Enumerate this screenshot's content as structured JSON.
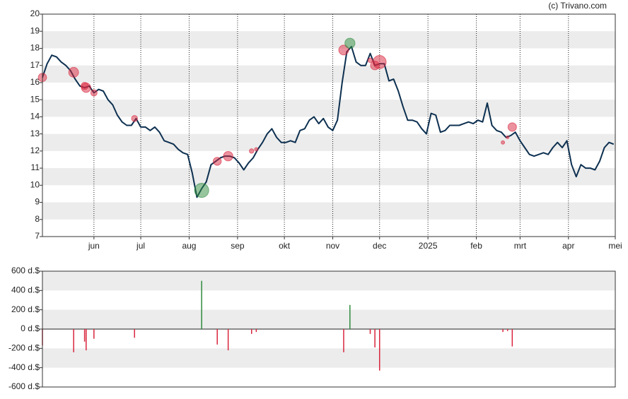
{
  "copyright": "(c) Trivano.com",
  "chart_data": [
    {
      "type": "line",
      "color": "#0d3050",
      "x": [
        0,
        3,
        6,
        9,
        12,
        15,
        18,
        21,
        24,
        27,
        30,
        33,
        36,
        39,
        42,
        45,
        48,
        51,
        54,
        57,
        60,
        63,
        66,
        69,
        72,
        75,
        78,
        81,
        84,
        87,
        90,
        93,
        96,
        99,
        102,
        105,
        108,
        111,
        114,
        117,
        120,
        123,
        126,
        129,
        132,
        135,
        138,
        141,
        144,
        147,
        150,
        153,
        156,
        159,
        162,
        165,
        168,
        171,
        174,
        177,
        180,
        183,
        186,
        189,
        192,
        195,
        198,
        201,
        204,
        207,
        210,
        213,
        216,
        219,
        222,
        225,
        228,
        231,
        234,
        237,
        240,
        243,
        246,
        249,
        252,
        255,
        258,
        261,
        264,
        267,
        270,
        273,
        276,
        279,
        282,
        285,
        288,
        291,
        294,
        297,
        300,
        303,
        306,
        309,
        312,
        315,
        318,
        321,
        324,
        327,
        330,
        333,
        336,
        339,
        342,
        345,
        348,
        351,
        354,
        357,
        360,
        363,
        366
      ],
      "values": [
        16.3,
        17.1,
        17.6,
        17.5,
        17.2,
        17.0,
        16.7,
        16.2,
        15.8,
        15.7,
        15.8,
        15.4,
        15.6,
        15.5,
        15.0,
        14.7,
        14.1,
        13.7,
        13.5,
        13.5,
        13.9,
        13.4,
        13.4,
        13.2,
        13.4,
        13.1,
        12.6,
        12.5,
        12.4,
        12.1,
        11.9,
        11.8,
        10.7,
        9.3,
        9.8,
        10.2,
        11.2,
        11.4,
        11.6,
        11.7,
        11.7,
        11.6,
        11.3,
        10.9,
        11.3,
        11.6,
        12.1,
        12.5,
        13.0,
        13.3,
        12.8,
        12.5,
        12.5,
        12.6,
        12.5,
        13.2,
        13.3,
        13.8,
        14.0,
        13.6,
        13.9,
        13.4,
        13.2,
        13.8,
        16.0,
        17.8,
        18.1,
        17.2,
        17.0,
        17.0,
        17.7,
        17.0,
        17.1,
        17.1,
        16.1,
        16.2,
        15.5,
        14.6,
        13.8,
        13.8,
        13.7,
        13.3,
        13.0,
        14.2,
        14.1,
        13.1,
        13.2,
        13.5,
        13.5,
        13.5,
        13.6,
        13.7,
        13.6,
        13.8,
        13.7,
        14.8,
        13.5,
        13.2,
        13.1,
        12.8,
        12.9,
        13.1,
        12.6,
        12.2,
        11.8,
        11.7,
        11.8,
        11.9,
        11.8,
        12.2,
        12.5,
        12.2,
        12.6,
        11.2,
        10.5,
        11.2,
        11.0,
        11.0,
        10.9,
        11.4,
        12.2,
        12.5,
        12.4
      ],
      "markers": {
        "x": [
          0,
          20,
          27,
          28,
          33,
          59,
          102,
          112,
          119,
          134,
          137,
          193,
          197,
          210,
          213,
          216,
          295,
          298,
          301
        ],
        "values": [
          16.3,
          16.6,
          15.8,
          15.7,
          15.4,
          13.9,
          9.7,
          11.4,
          11.7,
          12.0,
          12.1,
          17.9,
          18.3,
          17.3,
          17.0,
          17.2,
          12.5,
          12.8,
          13.4
        ]
      },
      "xlim": [
        0,
        367
      ],
      "xticks": [
        {
          "value": 33,
          "label": "jun"
        },
        {
          "value": 63,
          "label": "jul"
        },
        {
          "value": 94,
          "label": "aug"
        },
        {
          "value": 125,
          "label": "sep"
        },
        {
          "value": 155,
          "label": "okt"
        },
        {
          "value": 186,
          "label": "nov"
        },
        {
          "value": 216,
          "label": "dec"
        },
        {
          "value": 247,
          "label": "2025"
        },
        {
          "value": 278,
          "label": "feb"
        },
        {
          "value": 306,
          "label": "mrt"
        },
        {
          "value": 337,
          "label": "apr"
        },
        {
          "value": 367,
          "label": "mei"
        }
      ],
      "ylim": [
        7,
        20
      ],
      "yticks": [
        7,
        8,
        9,
        10,
        11,
        12,
        13,
        14,
        15,
        16,
        17,
        18,
        19,
        20
      ]
    },
    {
      "type": "bar",
      "positive_color": "#2e8b3e",
      "negative_color": "#d9263d",
      "x": [
        0,
        20,
        27,
        28,
        33,
        59,
        102,
        112,
        119,
        134,
        137,
        193,
        197,
        210,
        213,
        216,
        295,
        298,
        301
      ],
      "values": [
        -170,
        -240,
        -130,
        -220,
        -100,
        -90,
        500,
        -160,
        -220,
        -50,
        -30,
        -240,
        250,
        -50,
        -190,
        -430,
        -30,
        -20,
        -180
      ],
      "xlim": [
        0,
        367
      ],
      "ylim": [
        -600,
        600
      ],
      "yticks": [
        {
          "value": -600,
          "label": "-600 d.$"
        },
        {
          "value": -400,
          "label": "-400 d.$"
        },
        {
          "value": -200,
          "label": "-200 d.$"
        },
        {
          "value": 0,
          "label": "0 d.$"
        },
        {
          "value": 200,
          "label": "200 d.$"
        },
        {
          "value": 400,
          "label": "400 d.$"
        },
        {
          "value": 600,
          "label": "600 d.$"
        }
      ]
    }
  ]
}
